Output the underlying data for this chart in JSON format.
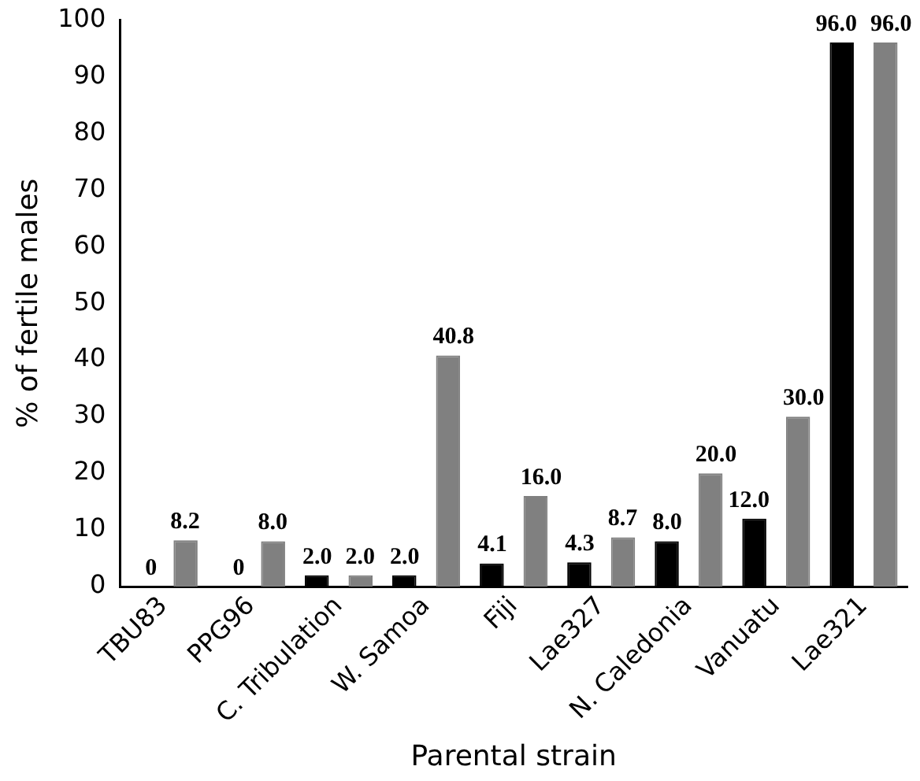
{
  "chart_data": {
    "type": "bar",
    "xlabel": "Parental strain",
    "ylabel": "% of fertile males",
    "categories": [
      "TBU83",
      "PPG96",
      "C. Tribulation",
      "W. Samoa",
      "Fiji",
      "Lae327",
      "N. Caledonia",
      "Vanuatu",
      "Lae321"
    ],
    "series": [
      {
        "color": "#000000",
        "values": [
          0,
          0,
          2.0,
          2.0,
          4.1,
          4.3,
          8.0,
          12.0,
          96.0
        ],
        "value_labels": [
          "0",
          "0",
          "2.0",
          "2.0",
          "4.1",
          "4.3",
          "8.0",
          "12.0",
          "96.0"
        ]
      },
      {
        "color": "#808080",
        "values": [
          8.2,
          8.0,
          2.0,
          40.8,
          16.0,
          8.7,
          20.0,
          30.0,
          96.0
        ],
        "value_labels": [
          "8.2",
          "8.0",
          "2.0",
          "40.8",
          "16.0",
          "8.7",
          "20.0",
          "30.0",
          "96.0"
        ]
      }
    ],
    "ylim": [
      0,
      100
    ],
    "yticks": [
      0,
      10,
      20,
      30,
      40,
      50,
      60,
      70,
      80,
      90,
      100
    ],
    "grid": false,
    "legend": false
  }
}
